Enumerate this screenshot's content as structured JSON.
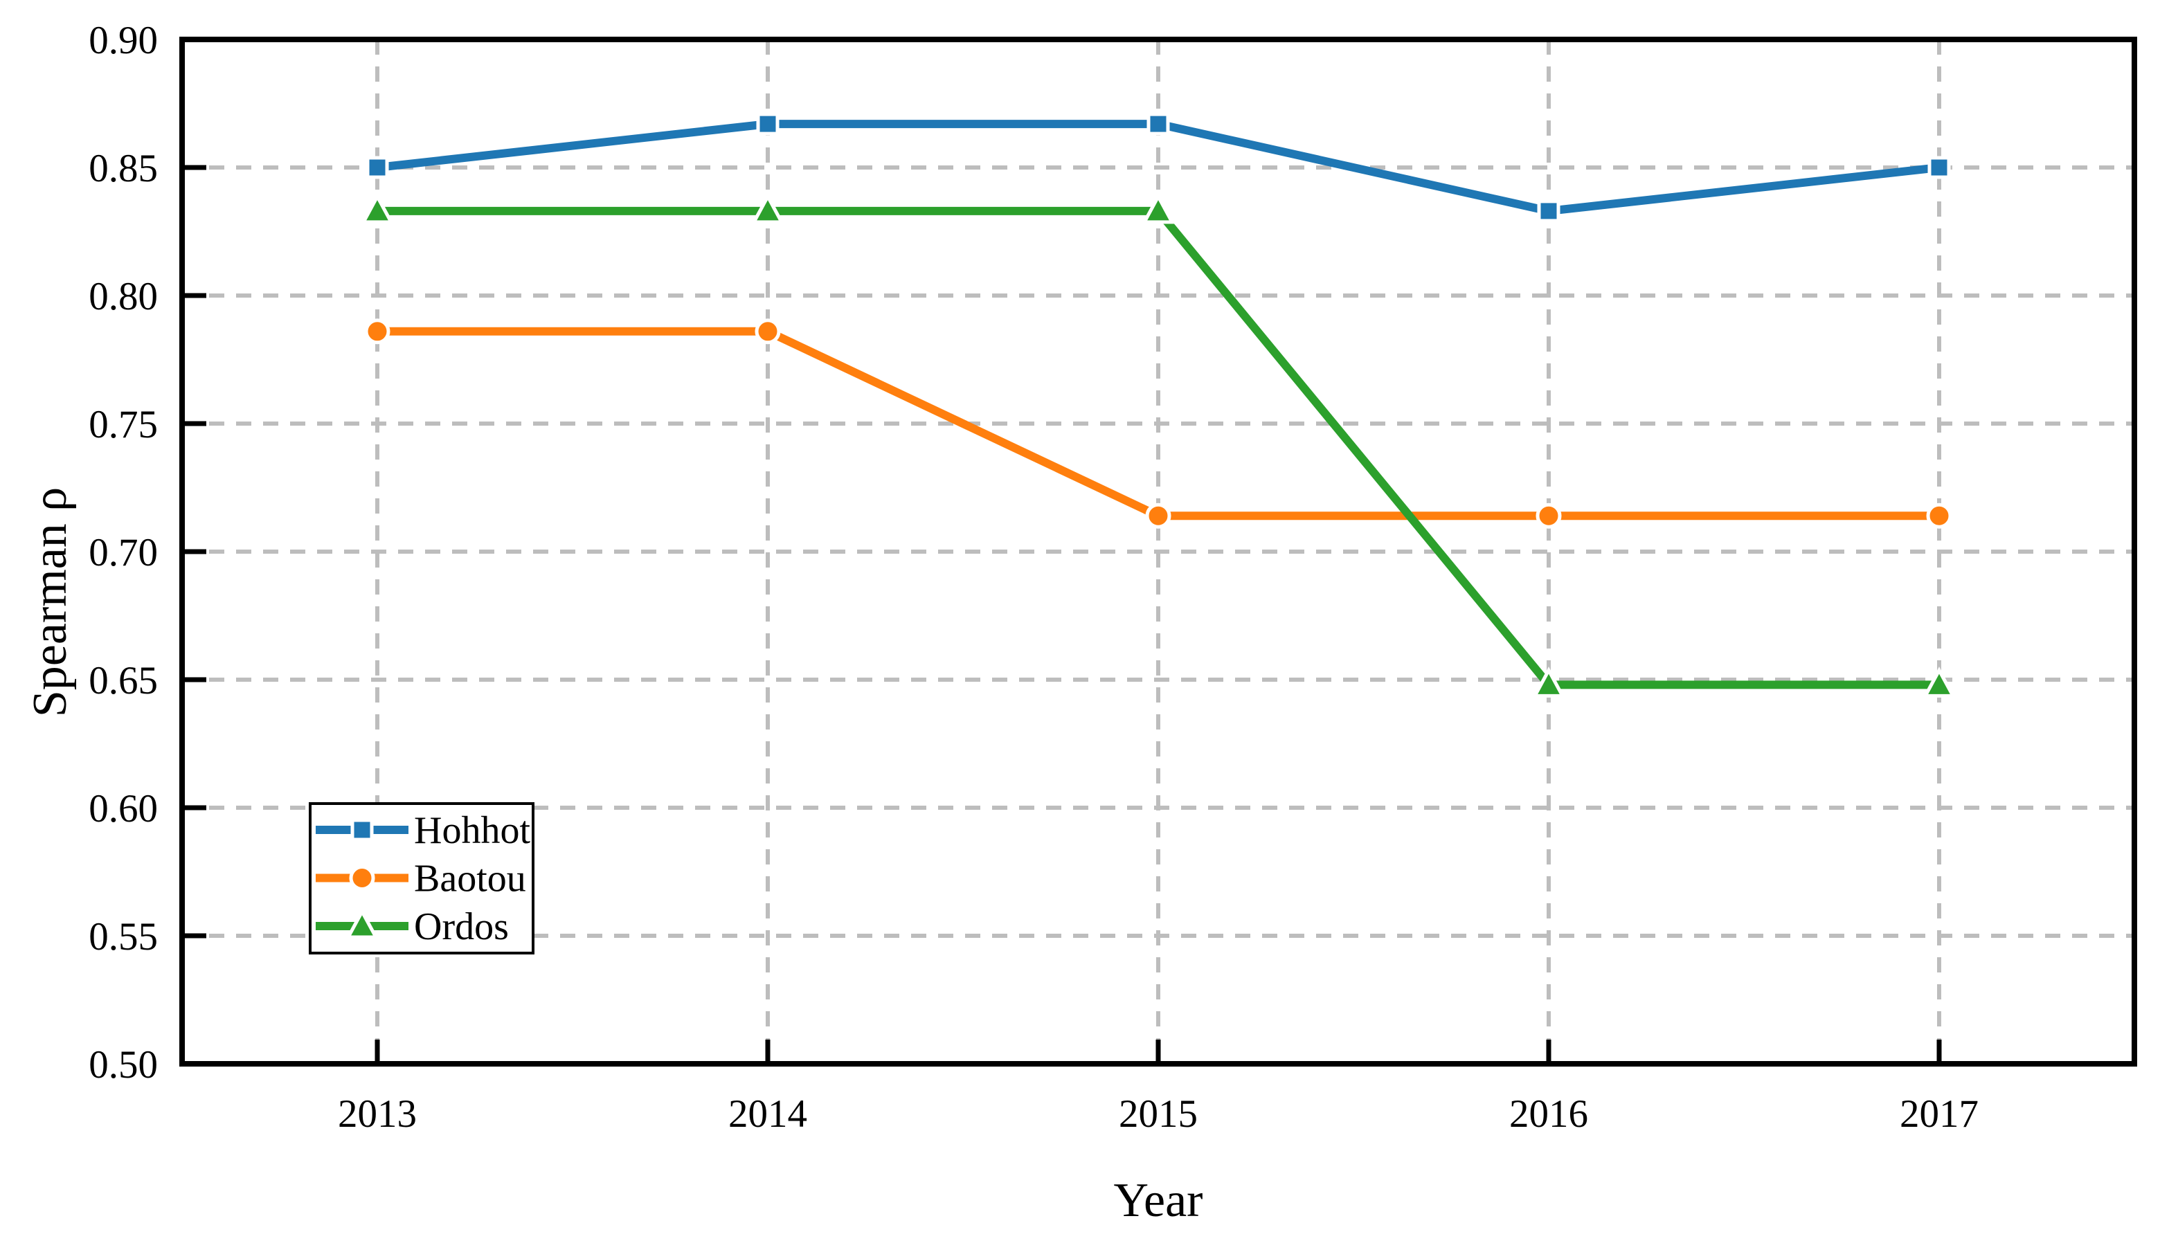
{
  "chart_data": {
    "type": "line",
    "title": "",
    "xlabel": "Year",
    "ylabel": "Spearman ρ",
    "x": [
      2013,
      2014,
      2015,
      2016,
      2017
    ],
    "xticks": [
      "2013",
      "2014",
      "2015",
      "2016",
      "2017"
    ],
    "series": [
      {
        "name": "Hohhot",
        "color": "#1f77b4",
        "marker": "square",
        "values": [
          0.85,
          0.867,
          0.867,
          0.833,
          0.85
        ]
      },
      {
        "name": "Baotou",
        "color": "#ff7f0e",
        "marker": "circle",
        "values": [
          0.786,
          0.786,
          0.714,
          0.714,
          0.714
        ]
      },
      {
        "name": "Ordos",
        "color": "#2ca02c",
        "marker": "triangle",
        "values": [
          0.833,
          0.833,
          0.833,
          0.648,
          0.648
        ]
      }
    ],
    "ylim": [
      0.5,
      0.9
    ],
    "yticks": [
      0.5,
      0.55,
      0.6,
      0.65,
      0.7,
      0.75,
      0.8,
      0.85,
      0.9
    ],
    "ytick_labels": [
      "0.50",
      "0.55",
      "0.60",
      "0.65",
      "0.70",
      "0.75",
      "0.80",
      "0.85",
      "0.90"
    ],
    "grid": {
      "on": true,
      "color": "#bdbdbd",
      "style": "dashed"
    },
    "axis_color": "#000000",
    "marker_edge_color": "#ffffff",
    "legend": {
      "position": "lower-left",
      "entries": [
        "Hohhot",
        "Baotou",
        "Ordos"
      ]
    }
  }
}
